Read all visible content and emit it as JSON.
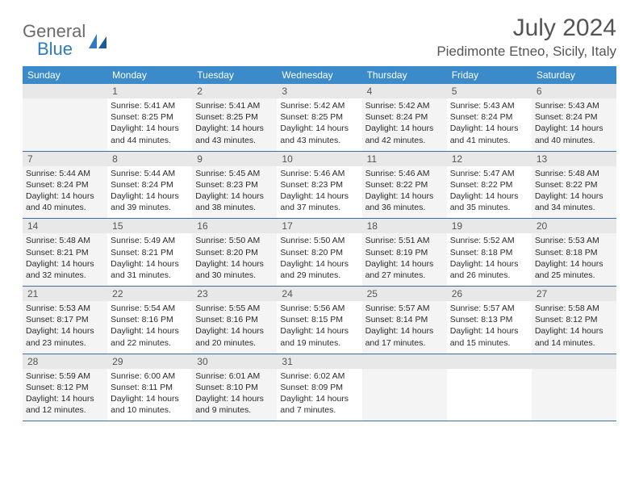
{
  "logo": {
    "text1": "General",
    "text2": "Blue"
  },
  "title": "July 2024",
  "location": "Piedimonte Etneo, Sicily, Italy",
  "colors": {
    "header_bg": "#3b8bca",
    "header_text": "#ffffff",
    "rule": "#3b6fa0",
    "odd_cell": "#f4f4f4",
    "logo_gray": "#6b6b6b",
    "logo_blue": "#2f7ac0"
  },
  "day_names": [
    "Sunday",
    "Monday",
    "Tuesday",
    "Wednesday",
    "Thursday",
    "Friday",
    "Saturday"
  ],
  "weeks": [
    {
      "nums": [
        "",
        "1",
        "2",
        "3",
        "4",
        "5",
        "6"
      ],
      "cells": [
        {
          "sunrise": "",
          "sunset": "",
          "daylight": ""
        },
        {
          "sunrise": "Sunrise: 5:41 AM",
          "sunset": "Sunset: 8:25 PM",
          "daylight": "Daylight: 14 hours and 44 minutes."
        },
        {
          "sunrise": "Sunrise: 5:41 AM",
          "sunset": "Sunset: 8:25 PM",
          "daylight": "Daylight: 14 hours and 43 minutes."
        },
        {
          "sunrise": "Sunrise: 5:42 AM",
          "sunset": "Sunset: 8:25 PM",
          "daylight": "Daylight: 14 hours and 43 minutes."
        },
        {
          "sunrise": "Sunrise: 5:42 AM",
          "sunset": "Sunset: 8:24 PM",
          "daylight": "Daylight: 14 hours and 42 minutes."
        },
        {
          "sunrise": "Sunrise: 5:43 AM",
          "sunset": "Sunset: 8:24 PM",
          "daylight": "Daylight: 14 hours and 41 minutes."
        },
        {
          "sunrise": "Sunrise: 5:43 AM",
          "sunset": "Sunset: 8:24 PM",
          "daylight": "Daylight: 14 hours and 40 minutes."
        }
      ]
    },
    {
      "nums": [
        "7",
        "8",
        "9",
        "10",
        "11",
        "12",
        "13"
      ],
      "cells": [
        {
          "sunrise": "Sunrise: 5:44 AM",
          "sunset": "Sunset: 8:24 PM",
          "daylight": "Daylight: 14 hours and 40 minutes."
        },
        {
          "sunrise": "Sunrise: 5:44 AM",
          "sunset": "Sunset: 8:24 PM",
          "daylight": "Daylight: 14 hours and 39 minutes."
        },
        {
          "sunrise": "Sunrise: 5:45 AM",
          "sunset": "Sunset: 8:23 PM",
          "daylight": "Daylight: 14 hours and 38 minutes."
        },
        {
          "sunrise": "Sunrise: 5:46 AM",
          "sunset": "Sunset: 8:23 PM",
          "daylight": "Daylight: 14 hours and 37 minutes."
        },
        {
          "sunrise": "Sunrise: 5:46 AM",
          "sunset": "Sunset: 8:22 PM",
          "daylight": "Daylight: 14 hours and 36 minutes."
        },
        {
          "sunrise": "Sunrise: 5:47 AM",
          "sunset": "Sunset: 8:22 PM",
          "daylight": "Daylight: 14 hours and 35 minutes."
        },
        {
          "sunrise": "Sunrise: 5:48 AM",
          "sunset": "Sunset: 8:22 PM",
          "daylight": "Daylight: 14 hours and 34 minutes."
        }
      ]
    },
    {
      "nums": [
        "14",
        "15",
        "16",
        "17",
        "18",
        "19",
        "20"
      ],
      "cells": [
        {
          "sunrise": "Sunrise: 5:48 AM",
          "sunset": "Sunset: 8:21 PM",
          "daylight": "Daylight: 14 hours and 32 minutes."
        },
        {
          "sunrise": "Sunrise: 5:49 AM",
          "sunset": "Sunset: 8:21 PM",
          "daylight": "Daylight: 14 hours and 31 minutes."
        },
        {
          "sunrise": "Sunrise: 5:50 AM",
          "sunset": "Sunset: 8:20 PM",
          "daylight": "Daylight: 14 hours and 30 minutes."
        },
        {
          "sunrise": "Sunrise: 5:50 AM",
          "sunset": "Sunset: 8:20 PM",
          "daylight": "Daylight: 14 hours and 29 minutes."
        },
        {
          "sunrise": "Sunrise: 5:51 AM",
          "sunset": "Sunset: 8:19 PM",
          "daylight": "Daylight: 14 hours and 27 minutes."
        },
        {
          "sunrise": "Sunrise: 5:52 AM",
          "sunset": "Sunset: 8:18 PM",
          "daylight": "Daylight: 14 hours and 26 minutes."
        },
        {
          "sunrise": "Sunrise: 5:53 AM",
          "sunset": "Sunset: 8:18 PM",
          "daylight": "Daylight: 14 hours and 25 minutes."
        }
      ]
    },
    {
      "nums": [
        "21",
        "22",
        "23",
        "24",
        "25",
        "26",
        "27"
      ],
      "cells": [
        {
          "sunrise": "Sunrise: 5:53 AM",
          "sunset": "Sunset: 8:17 PM",
          "daylight": "Daylight: 14 hours and 23 minutes."
        },
        {
          "sunrise": "Sunrise: 5:54 AM",
          "sunset": "Sunset: 8:16 PM",
          "daylight": "Daylight: 14 hours and 22 minutes."
        },
        {
          "sunrise": "Sunrise: 5:55 AM",
          "sunset": "Sunset: 8:16 PM",
          "daylight": "Daylight: 14 hours and 20 minutes."
        },
        {
          "sunrise": "Sunrise: 5:56 AM",
          "sunset": "Sunset: 8:15 PM",
          "daylight": "Daylight: 14 hours and 19 minutes."
        },
        {
          "sunrise": "Sunrise: 5:57 AM",
          "sunset": "Sunset: 8:14 PM",
          "daylight": "Daylight: 14 hours and 17 minutes."
        },
        {
          "sunrise": "Sunrise: 5:57 AM",
          "sunset": "Sunset: 8:13 PM",
          "daylight": "Daylight: 14 hours and 15 minutes."
        },
        {
          "sunrise": "Sunrise: 5:58 AM",
          "sunset": "Sunset: 8:12 PM",
          "daylight": "Daylight: 14 hours and 14 minutes."
        }
      ]
    },
    {
      "nums": [
        "28",
        "29",
        "30",
        "31",
        "",
        "",
        ""
      ],
      "cells": [
        {
          "sunrise": "Sunrise: 5:59 AM",
          "sunset": "Sunset: 8:12 PM",
          "daylight": "Daylight: 14 hours and 12 minutes."
        },
        {
          "sunrise": "Sunrise: 6:00 AM",
          "sunset": "Sunset: 8:11 PM",
          "daylight": "Daylight: 14 hours and 10 minutes."
        },
        {
          "sunrise": "Sunrise: 6:01 AM",
          "sunset": "Sunset: 8:10 PM",
          "daylight": "Daylight: 14 hours and 9 minutes."
        },
        {
          "sunrise": "Sunrise: 6:02 AM",
          "sunset": "Sunset: 8:09 PM",
          "daylight": "Daylight: 14 hours and 7 minutes."
        },
        {
          "sunrise": "",
          "sunset": "",
          "daylight": ""
        },
        {
          "sunrise": "",
          "sunset": "",
          "daylight": ""
        },
        {
          "sunrise": "",
          "sunset": "",
          "daylight": ""
        }
      ]
    }
  ]
}
